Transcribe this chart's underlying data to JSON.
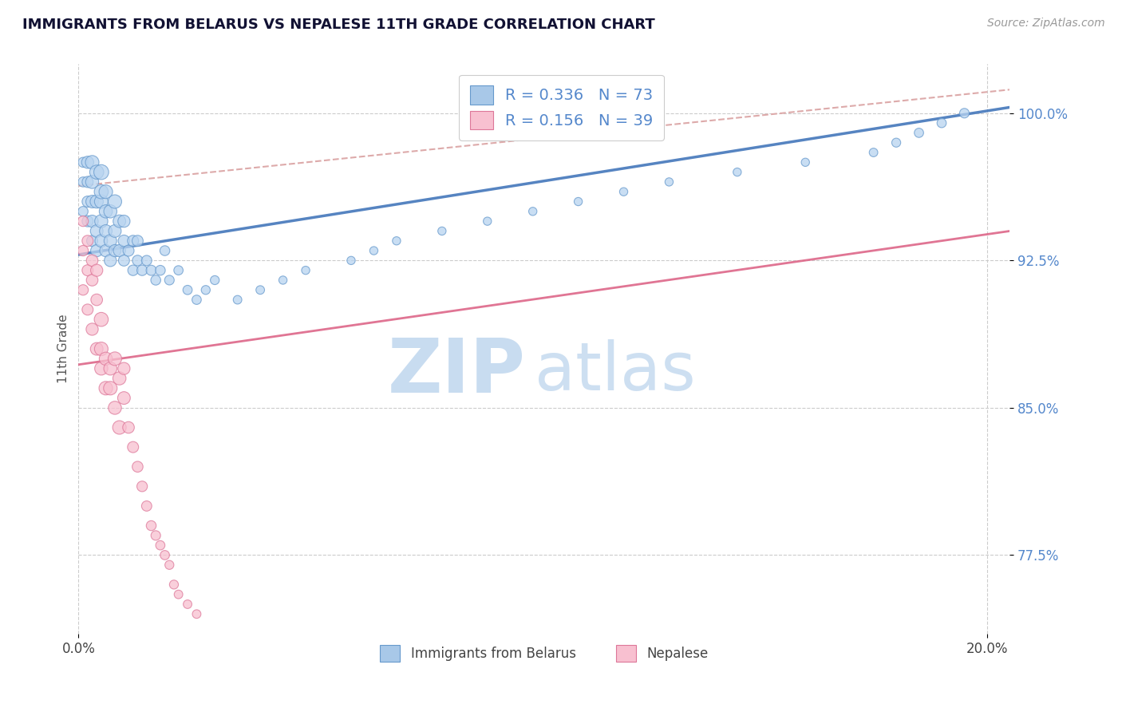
{
  "title": "IMMIGRANTS FROM BELARUS VS NEPALESE 11TH GRADE CORRELATION CHART",
  "source_text": "Source: ZipAtlas.com",
  "ylabel": "11th Grade",
  "xlim": [
    0.0,
    0.205
  ],
  "ylim": [
    0.735,
    1.025
  ],
  "x_tick_positions": [
    0.0,
    0.2
  ],
  "x_tick_labels": [
    "0.0%",
    "20.0%"
  ],
  "y_tick_positions": [
    0.775,
    0.85,
    0.925,
    1.0
  ],
  "y_tick_labels": [
    "77.5%",
    "85.0%",
    "92.5%",
    "100.0%"
  ],
  "legend_line1": "R = 0.336   N = 73",
  "legend_line2": "R = 0.156   N = 39",
  "series1_label": "Immigrants from Belarus",
  "series2_label": "Nepalese",
  "color_blue_fill": "#B8D4F0",
  "color_blue_edge": "#6699CC",
  "color_pink_fill": "#F8C0D0",
  "color_pink_edge": "#DD7799",
  "trend_blue_color": "#4477BB",
  "trend_pink_color": "#DD6688",
  "trend_dashed_color": "#DDAAAA",
  "legend_box_color": "#A8C8E8",
  "legend_pink_color": "#F8C0D0",
  "watermark_zip_color": "#C8DCF0",
  "watermark_atlas_color": "#C8DCF0",
  "title_color": "#111133",
  "axis_value_color": "#5588CC",
  "legend_r_color": "#5588CC",
  "blue_trend": [
    0.0,
    0.928,
    0.205,
    1.003
  ],
  "pink_trend": [
    0.0,
    0.872,
    0.205,
    0.94
  ],
  "dashed_trend": [
    0.0,
    0.963,
    0.205,
    1.012
  ],
  "blue_x": [
    0.001,
    0.001,
    0.001,
    0.002,
    0.002,
    0.002,
    0.002,
    0.003,
    0.003,
    0.003,
    0.003,
    0.003,
    0.004,
    0.004,
    0.004,
    0.004,
    0.005,
    0.005,
    0.005,
    0.005,
    0.005,
    0.006,
    0.006,
    0.006,
    0.006,
    0.007,
    0.007,
    0.007,
    0.008,
    0.008,
    0.008,
    0.009,
    0.009,
    0.01,
    0.01,
    0.01,
    0.011,
    0.012,
    0.012,
    0.013,
    0.013,
    0.014,
    0.015,
    0.016,
    0.017,
    0.018,
    0.019,
    0.02,
    0.022,
    0.024,
    0.026,
    0.028,
    0.03,
    0.035,
    0.04,
    0.045,
    0.05,
    0.06,
    0.065,
    0.07,
    0.08,
    0.09,
    0.1,
    0.11,
    0.12,
    0.13,
    0.145,
    0.16,
    0.175,
    0.18,
    0.185,
    0.19,
    0.195
  ],
  "blue_y": [
    0.95,
    0.965,
    0.975,
    0.945,
    0.955,
    0.965,
    0.975,
    0.935,
    0.945,
    0.955,
    0.965,
    0.975,
    0.93,
    0.94,
    0.955,
    0.97,
    0.935,
    0.945,
    0.955,
    0.96,
    0.97,
    0.93,
    0.94,
    0.95,
    0.96,
    0.925,
    0.935,
    0.95,
    0.93,
    0.94,
    0.955,
    0.93,
    0.945,
    0.925,
    0.935,
    0.945,
    0.93,
    0.92,
    0.935,
    0.925,
    0.935,
    0.92,
    0.925,
    0.92,
    0.915,
    0.92,
    0.93,
    0.915,
    0.92,
    0.91,
    0.905,
    0.91,
    0.915,
    0.905,
    0.91,
    0.915,
    0.92,
    0.925,
    0.93,
    0.935,
    0.94,
    0.945,
    0.95,
    0.955,
    0.96,
    0.965,
    0.97,
    0.975,
    0.98,
    0.985,
    0.99,
    0.995,
    1.0
  ],
  "blue_sizes": [
    80,
    80,
    80,
    100,
    100,
    100,
    120,
    100,
    120,
    130,
    140,
    150,
    120,
    130,
    140,
    160,
    130,
    140,
    150,
    160,
    180,
    120,
    130,
    140,
    150,
    120,
    130,
    140,
    120,
    130,
    150,
    120,
    130,
    100,
    110,
    120,
    100,
    90,
    100,
    90,
    100,
    90,
    85,
    85,
    80,
    80,
    80,
    75,
    70,
    70,
    70,
    65,
    65,
    60,
    60,
    55,
    55,
    55,
    55,
    55,
    55,
    55,
    55,
    55,
    55,
    55,
    55,
    55,
    60,
    65,
    70,
    70,
    75
  ],
  "pink_x": [
    0.001,
    0.001,
    0.001,
    0.002,
    0.002,
    0.002,
    0.003,
    0.003,
    0.003,
    0.004,
    0.004,
    0.004,
    0.005,
    0.005,
    0.005,
    0.006,
    0.006,
    0.007,
    0.007,
    0.008,
    0.008,
    0.009,
    0.009,
    0.01,
    0.01,
    0.011,
    0.012,
    0.013,
    0.014,
    0.015,
    0.016,
    0.017,
    0.018,
    0.019,
    0.02,
    0.021,
    0.022,
    0.024,
    0.026
  ],
  "pink_y": [
    0.93,
    0.945,
    0.91,
    0.92,
    0.935,
    0.9,
    0.915,
    0.925,
    0.89,
    0.905,
    0.92,
    0.88,
    0.87,
    0.88,
    0.895,
    0.875,
    0.86,
    0.87,
    0.86,
    0.85,
    0.875,
    0.865,
    0.84,
    0.87,
    0.855,
    0.84,
    0.83,
    0.82,
    0.81,
    0.8,
    0.79,
    0.785,
    0.78,
    0.775,
    0.77,
    0.76,
    0.755,
    0.75,
    0.745
  ],
  "pink_sizes": [
    90,
    90,
    90,
    100,
    100,
    100,
    110,
    110,
    120,
    110,
    120,
    130,
    140,
    150,
    160,
    140,
    150,
    140,
    150,
    140,
    150,
    140,
    150,
    120,
    130,
    110,
    100,
    95,
    90,
    85,
    80,
    75,
    70,
    70,
    65,
    65,
    60,
    60,
    60
  ]
}
